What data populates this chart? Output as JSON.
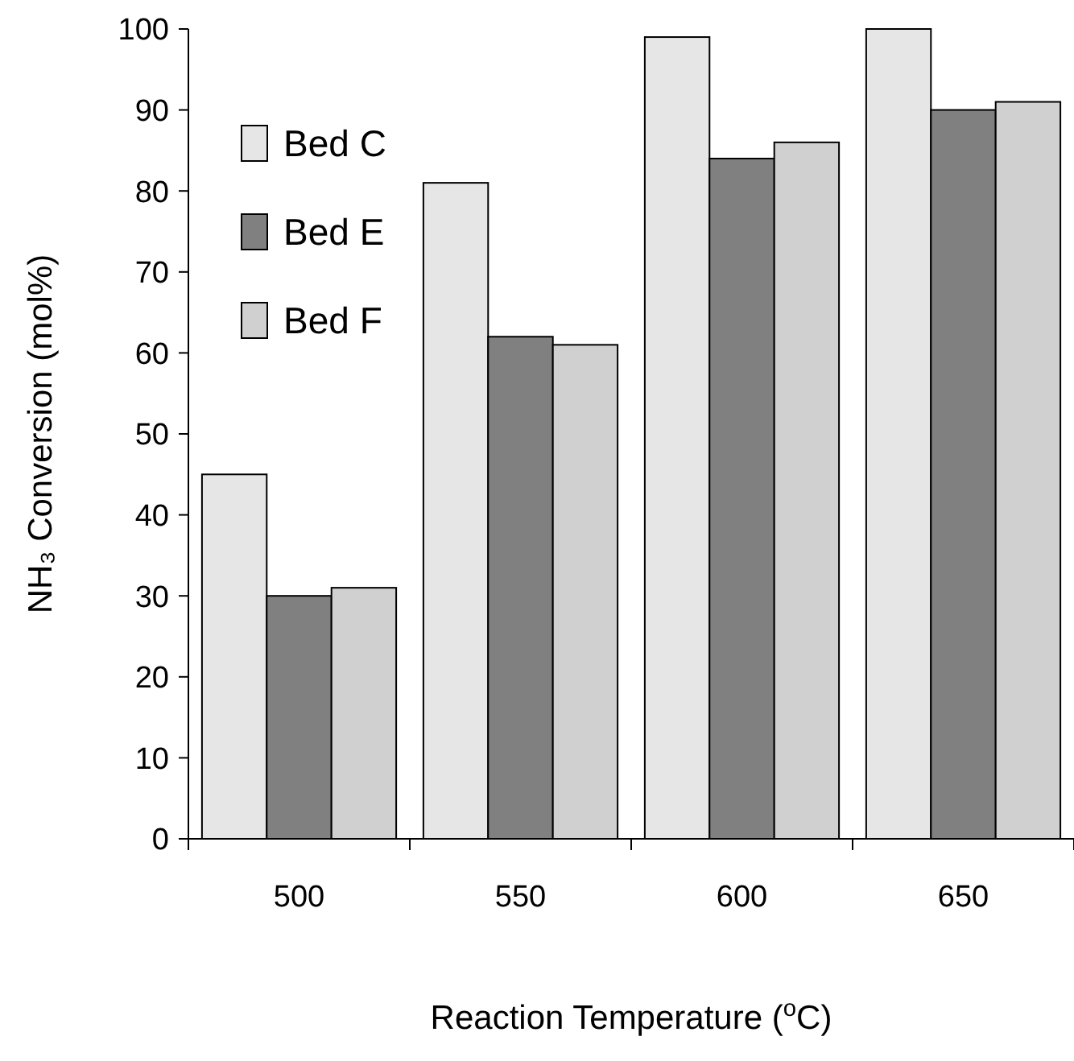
{
  "chart_data": {
    "type": "bar",
    "xlabel": "Reaction Temperature ($^{o}$C)",
    "ylabel": "NH₃ Conversion (mol%)",
    "categories": [
      "500",
      "550",
      "600",
      "650"
    ],
    "series": [
      {
        "name": "Bed C",
        "color": "#e6e6e6",
        "values": [
          45,
          81,
          99,
          100
        ]
      },
      {
        "name": "Bed E",
        "color": "#808080",
        "values": [
          30,
          62,
          84,
          90
        ]
      },
      {
        "name": "Bed F",
        "color": "#d0d0d0",
        "values": [
          31,
          61,
          86,
          91
        ]
      }
    ],
    "ylim": [
      0,
      100
    ],
    "yticks": [
      0,
      10,
      20,
      30,
      40,
      50,
      60,
      70,
      80,
      90,
      100
    ],
    "grid": false,
    "legend": "top left"
  }
}
